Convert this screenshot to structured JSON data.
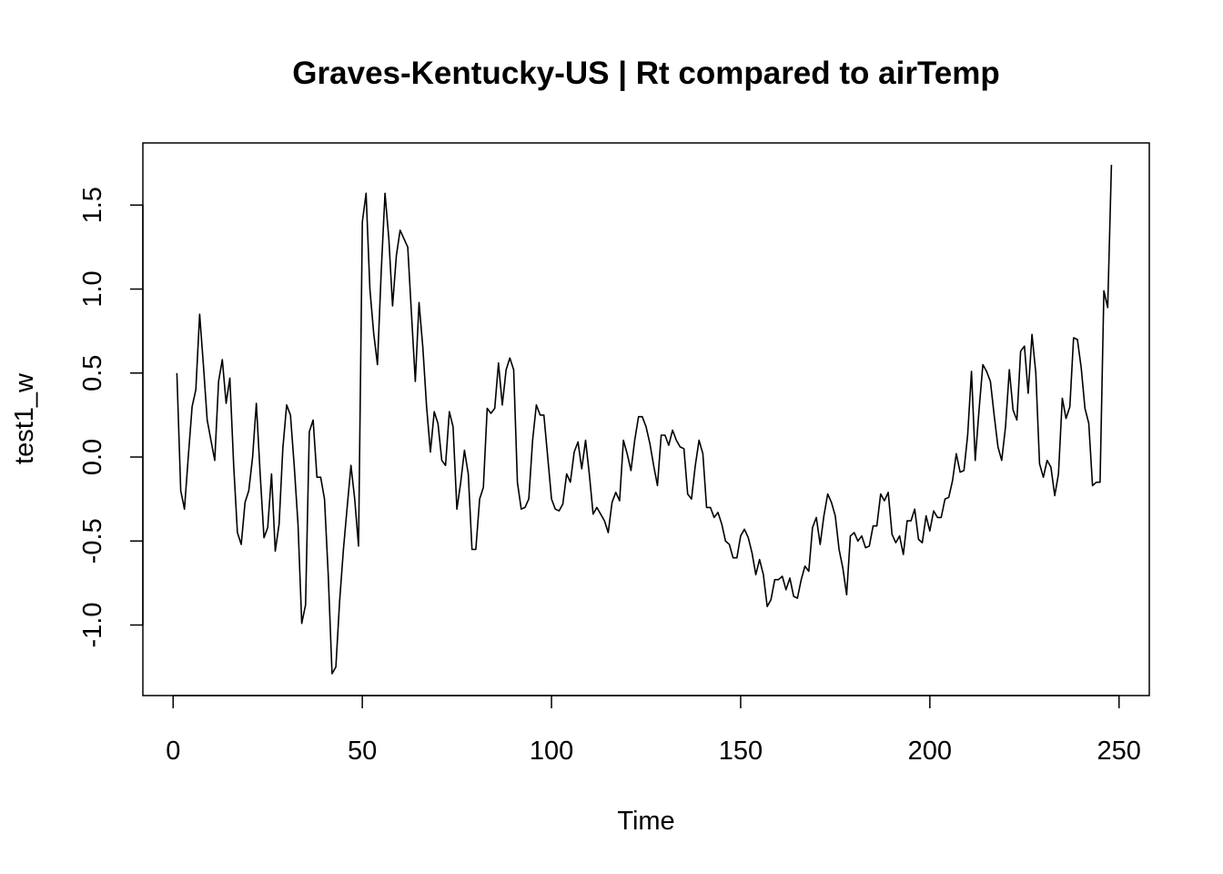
{
  "chart_data": {
    "type": "line",
    "title": "Graves-Kentucky-US | Rt compared to airTemp",
    "xlabel": "Time",
    "ylabel": "test1_w",
    "xlim": [
      -8,
      258
    ],
    "ylim": [
      -1.42,
      1.87
    ],
    "xticks": [
      0,
      50,
      100,
      150,
      200,
      250
    ],
    "yticks": [
      -1.0,
      -0.5,
      0.0,
      0.5,
      1.0,
      1.5
    ],
    "xtick_labels": [
      "0",
      "50",
      "100",
      "150",
      "200",
      "250"
    ],
    "ytick_labels": [
      "-1.0",
      "-0.5",
      "0.0",
      "0.5",
      "1.0",
      "1.5"
    ],
    "grid": false,
    "legend": "none",
    "line_color": "#000000",
    "series": [
      {
        "x": [
          1,
          2,
          3,
          4,
          5,
          6,
          7,
          8,
          9,
          10,
          11,
          12,
          13,
          14,
          15,
          16,
          17,
          18,
          19,
          20,
          21,
          22,
          23,
          24,
          25,
          26,
          27,
          28,
          29,
          30,
          31,
          32,
          33,
          34,
          35,
          36,
          37,
          38,
          39,
          40,
          41,
          42,
          43,
          44,
          45,
          46,
          47,
          48,
          49,
          50,
          51,
          52,
          53,
          54,
          55,
          56,
          57,
          58,
          59,
          60,
          61,
          62,
          63,
          64,
          65,
          66,
          67,
          68,
          69,
          70,
          71,
          72,
          73,
          74,
          75,
          76,
          77,
          78,
          79,
          80,
          81,
          82,
          83,
          84,
          85,
          86,
          87,
          88,
          89,
          90,
          91,
          92,
          93,
          94,
          95,
          96,
          97,
          98,
          99,
          100,
          101,
          102,
          103,
          104,
          105,
          106,
          107,
          108,
          109,
          110,
          111,
          112,
          113,
          114,
          115,
          116,
          117,
          118,
          119,
          120,
          121,
          122,
          123,
          124,
          125,
          126,
          127,
          128,
          129,
          130,
          131,
          132,
          133,
          134,
          135,
          136,
          137,
          138,
          139,
          140,
          141,
          142,
          143,
          144,
          145,
          146,
          147,
          148,
          149,
          150,
          151,
          152,
          153,
          154,
          155,
          156,
          157,
          158,
          159,
          160,
          161,
          162,
          163,
          164,
          165,
          166,
          167,
          168,
          169,
          170,
          171,
          172,
          173,
          174,
          175,
          176,
          177,
          178,
          179,
          180,
          181,
          182,
          183,
          184,
          185,
          186,
          187,
          188,
          189,
          190,
          191,
          192,
          193,
          194,
          195,
          196,
          197,
          198,
          199,
          200,
          201,
          202,
          203,
          204,
          205,
          206,
          207,
          208,
          209,
          210,
          211,
          212,
          213,
          214,
          215,
          216,
          217,
          218,
          219,
          220,
          221,
          222,
          223,
          224,
          225,
          226,
          227,
          228,
          229,
          230,
          231,
          232,
          233,
          234,
          235,
          236,
          237,
          238,
          239,
          240,
          241,
          242,
          243,
          244,
          245,
          246,
          247,
          248
        ],
        "values": [
          0.5,
          -0.2,
          -0.31,
          0.0,
          0.3,
          0.4,
          0.85,
          0.55,
          0.22,
          0.1,
          -0.02,
          0.45,
          0.58,
          0.32,
          0.47,
          -0.05,
          -0.45,
          -0.52,
          -0.27,
          -0.2,
          0.0,
          0.32,
          -0.1,
          -0.48,
          -0.42,
          -0.1,
          -0.56,
          -0.4,
          0.05,
          0.31,
          0.25,
          -0.05,
          -0.4,
          -0.99,
          -0.88,
          0.15,
          0.22,
          -0.12,
          -0.12,
          -0.25,
          -0.7,
          -1.29,
          -1.25,
          -0.86,
          -0.55,
          -0.3,
          -0.05,
          -0.25,
          -0.53,
          1.4,
          1.57,
          1.0,
          0.74,
          0.55,
          1.1,
          1.57,
          1.3,
          0.9,
          1.2,
          1.35,
          1.3,
          1.25,
          0.85,
          0.45,
          0.92,
          0.65,
          0.3,
          0.03,
          0.27,
          0.2,
          -0.02,
          -0.05,
          0.27,
          0.18,
          -0.31,
          -0.15,
          0.04,
          -0.1,
          -0.55,
          -0.55,
          -0.25,
          -0.18,
          0.29,
          0.26,
          0.29,
          0.56,
          0.31,
          0.52,
          0.59,
          0.52,
          -0.15,
          -0.31,
          -0.3,
          -0.25,
          0.1,
          0.31,
          0.25,
          0.25,
          0.0,
          -0.25,
          -0.31,
          -0.32,
          -0.28,
          -0.1,
          -0.15,
          0.03,
          0.09,
          -0.07,
          0.1,
          -0.1,
          -0.34,
          -0.3,
          -0.34,
          -0.38,
          -0.45,
          -0.27,
          -0.21,
          -0.26,
          0.1,
          0.02,
          -0.08,
          0.1,
          0.24,
          0.24,
          0.18,
          0.08,
          -0.05,
          -0.17,
          0.13,
          0.13,
          0.07,
          0.16,
          0.1,
          0.06,
          0.05,
          -0.22,
          -0.25,
          -0.05,
          0.1,
          0.02,
          -0.3,
          -0.3,
          -0.36,
          -0.33,
          -0.4,
          -0.5,
          -0.52,
          -0.6,
          -0.6,
          -0.47,
          -0.43,
          -0.48,
          -0.57,
          -0.7,
          -0.61,
          -0.7,
          -0.89,
          -0.85,
          -0.73,
          -0.73,
          -0.71,
          -0.79,
          -0.72,
          -0.83,
          -0.84,
          -0.73,
          -0.65,
          -0.68,
          -0.42,
          -0.36,
          -0.52,
          -0.35,
          -0.22,
          -0.27,
          -0.35,
          -0.55,
          -0.66,
          -0.82,
          -0.47,
          -0.45,
          -0.5,
          -0.47,
          -0.54,
          -0.53,
          -0.41,
          -0.41,
          -0.22,
          -0.26,
          -0.21,
          -0.46,
          -0.51,
          -0.47,
          -0.58,
          -0.38,
          -0.38,
          -0.31,
          -0.49,
          -0.51,
          -0.35,
          -0.44,
          -0.32,
          -0.36,
          -0.36,
          -0.25,
          -0.24,
          -0.14,
          0.02,
          -0.09,
          -0.08,
          0.13,
          0.51,
          -0.02,
          0.28,
          0.55,
          0.51,
          0.45,
          0.25,
          0.06,
          -0.02,
          0.18,
          0.52,
          0.28,
          0.22,
          0.63,
          0.66,
          0.38,
          0.73,
          0.5,
          -0.04,
          -0.12,
          -0.02,
          -0.06,
          -0.23,
          -0.1,
          0.35,
          0.23,
          0.3,
          0.71,
          0.7,
          0.53,
          0.29,
          0.2,
          -0.17,
          -0.15,
          -0.15,
          0.99,
          0.89,
          1.74
        ]
      }
    ]
  }
}
